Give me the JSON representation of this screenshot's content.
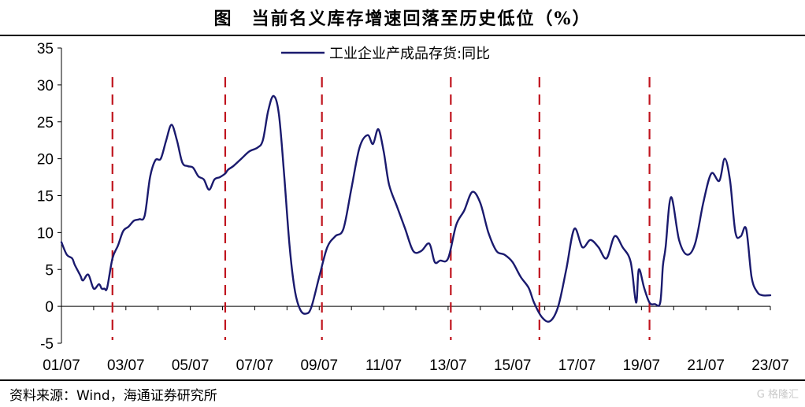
{
  "title": "图　当前名义库存增速回落至历史低位（%）",
  "source": "资料来源：Wind，海通证券研究所",
  "watermark": "G 格隆汇",
  "chart_data": {
    "type": "line",
    "title": "图　当前名义库存增速回落至历史低位（%）",
    "xlabel": "",
    "ylabel": "",
    "ylim": [
      -5,
      35
    ],
    "yticks": [
      -5,
      0,
      5,
      10,
      15,
      20,
      25,
      30,
      35
    ],
    "xticks": [
      "01/07",
      "03/07",
      "05/07",
      "07/07",
      "09/07",
      "11/07",
      "13/07",
      "15/07",
      "17/07",
      "19/07",
      "21/07",
      "23/07"
    ],
    "xrange": [
      "2001-07",
      "2023-07"
    ],
    "legend": {
      "position": "top-center"
    },
    "grid": false,
    "colors": {
      "series": "#1a1a6e",
      "markers": "#c0141e"
    },
    "series": [
      {
        "name": "工业企业产成品存货:同比",
        "x": [
          "2001-07",
          "2001-09",
          "2001-11",
          "2001-12",
          "2002-02",
          "2002-03",
          "2002-05",
          "2002-07",
          "2002-09",
          "2002-10",
          "2002-11",
          "2002-12",
          "2003-02",
          "2003-04",
          "2003-06",
          "2003-08",
          "2003-10",
          "2003-12",
          "2004-02",
          "2004-04",
          "2004-06",
          "2004-08",
          "2004-10",
          "2004-12",
          "2005-02",
          "2005-04",
          "2005-06",
          "2005-08",
          "2005-10",
          "2005-12",
          "2006-02",
          "2006-04",
          "2006-06",
          "2006-08",
          "2006-09",
          "2006-11",
          "2007-02",
          "2007-05",
          "2007-08",
          "2007-10",
          "2007-12",
          "2008-02",
          "2008-04",
          "2008-06",
          "2008-08",
          "2008-10",
          "2008-12",
          "2009-02",
          "2009-04",
          "2009-07",
          "2009-10",
          "2010-01",
          "2010-04",
          "2010-07",
          "2010-10",
          "2011-01",
          "2011-03",
          "2011-05",
          "2011-07",
          "2011-09",
          "2011-12",
          "2012-03",
          "2012-06",
          "2012-09",
          "2012-12",
          "2013-02",
          "2013-04",
          "2013-07",
          "2013-10",
          "2014-01",
          "2014-04",
          "2014-07",
          "2014-10",
          "2015-01",
          "2015-04",
          "2015-07",
          "2015-10",
          "2016-01",
          "2016-03",
          "2016-06",
          "2016-09",
          "2016-12",
          "2017-03",
          "2017-06",
          "2017-09",
          "2017-12",
          "2018-03",
          "2018-06",
          "2018-09",
          "2018-12",
          "2019-03",
          "2019-05",
          "2019-06",
          "2019-08",
          "2019-10",
          "2019-12",
          "2020-02",
          "2020-03",
          "2020-04",
          "2020-06",
          "2020-09",
          "2020-12",
          "2021-03",
          "2021-06",
          "2021-09",
          "2021-12",
          "2022-02",
          "2022-04",
          "2022-06",
          "2022-08",
          "2022-10",
          "2022-12",
          "2023-02",
          "2023-04",
          "2023-07"
        ],
        "values": [
          8.7,
          7.0,
          6.5,
          5.6,
          4.2,
          3.5,
          4.3,
          2.4,
          3.0,
          2.4,
          2.4,
          2.5,
          6.5,
          8.2,
          10.2,
          10.8,
          11.6,
          11.8,
          12.3,
          17.5,
          19.8,
          20.0,
          22.5,
          24.6,
          22.5,
          19.5,
          19.0,
          18.8,
          17.6,
          17.2,
          15.8,
          17.2,
          17.5,
          18.0,
          18.5,
          19.0,
          20.0,
          21.0,
          21.5,
          22.5,
          26.5,
          28.5,
          26.0,
          17.5,
          8.0,
          2.0,
          -0.5,
          -1.0,
          -0.2,
          4.0,
          8.0,
          9.5,
          10.5,
          16.0,
          21.5,
          23.2,
          22.0,
          24.0,
          21.0,
          16.5,
          13.5,
          10.5,
          7.5,
          7.5,
          8.5,
          6.0,
          6.2,
          6.5,
          11.0,
          13.0,
          15.5,
          14.0,
          10.0,
          7.5,
          7.0,
          6.0,
          4.0,
          2.5,
          0.5,
          -1.5,
          -2.0,
          0.0,
          5.0,
          10.5,
          8.0,
          9.0,
          8.0,
          6.5,
          9.5,
          8.0,
          6.0,
          0.5,
          5.0,
          2.5,
          0.5,
          0.3,
          0.5,
          5.5,
          8.0,
          14.8,
          9.0,
          7.0,
          8.5,
          14.0,
          18.0,
          17.0,
          20.0,
          17.0,
          10.0,
          9.5,
          10.5,
          4.0,
          2.0,
          1.5,
          1.5
        ]
      }
    ],
    "vertical_markers": [
      "2003-02",
      "2006-08",
      "2009-08",
      "2013-08",
      "2016-05",
      "2019-10"
    ]
  }
}
